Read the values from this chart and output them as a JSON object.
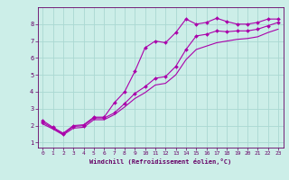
{
  "xlabel": "Windchill (Refroidissement éolien,°C)",
  "bg_color": "#cceee8",
  "grid_color": "#aad8d2",
  "line_color": "#aa00aa",
  "xlim": [
    -0.5,
    23.5
  ],
  "ylim": [
    0.7,
    9.0
  ],
  "yticks": [
    1,
    2,
    3,
    4,
    5,
    6,
    7,
    8
  ],
  "xticks": [
    0,
    1,
    2,
    3,
    4,
    5,
    6,
    7,
    8,
    9,
    10,
    11,
    12,
    13,
    14,
    15,
    16,
    17,
    18,
    19,
    20,
    21,
    22,
    23
  ],
  "line1_x": [
    0,
    1,
    2,
    3,
    4,
    5,
    6,
    7,
    8,
    9,
    10,
    11,
    12,
    13,
    14,
    15,
    16,
    17,
    18,
    19,
    20,
    21,
    22,
    23
  ],
  "line1_y": [
    2.3,
    1.9,
    1.55,
    2.0,
    2.05,
    2.5,
    2.5,
    3.35,
    4.0,
    5.2,
    6.6,
    7.0,
    6.9,
    7.5,
    8.3,
    8.0,
    8.1,
    8.35,
    8.15,
    8.0,
    8.0,
    8.1,
    8.3,
    8.3
  ],
  "line2_x": [
    0,
    1,
    2,
    3,
    4,
    5,
    6,
    7,
    8,
    9,
    10,
    11,
    12,
    13,
    14,
    15,
    16,
    17,
    18,
    19,
    20,
    21,
    22,
    23
  ],
  "line2_y": [
    2.2,
    1.85,
    1.5,
    1.95,
    2.0,
    2.45,
    2.45,
    2.75,
    3.3,
    3.9,
    4.3,
    4.8,
    4.9,
    5.5,
    6.5,
    7.3,
    7.4,
    7.6,
    7.55,
    7.6,
    7.6,
    7.7,
    7.9,
    8.1
  ],
  "line3_x": [
    0,
    1,
    2,
    3,
    4,
    5,
    6,
    7,
    8,
    9,
    10,
    11,
    12,
    13,
    14,
    15,
    16,
    17,
    18,
    19,
    20,
    21,
    22,
    23
  ],
  "line3_y": [
    2.1,
    1.8,
    1.45,
    1.85,
    1.9,
    2.35,
    2.35,
    2.65,
    3.1,
    3.6,
    3.95,
    4.4,
    4.5,
    5.0,
    5.9,
    6.5,
    6.7,
    6.9,
    7.0,
    7.1,
    7.15,
    7.25,
    7.5,
    7.7
  ]
}
